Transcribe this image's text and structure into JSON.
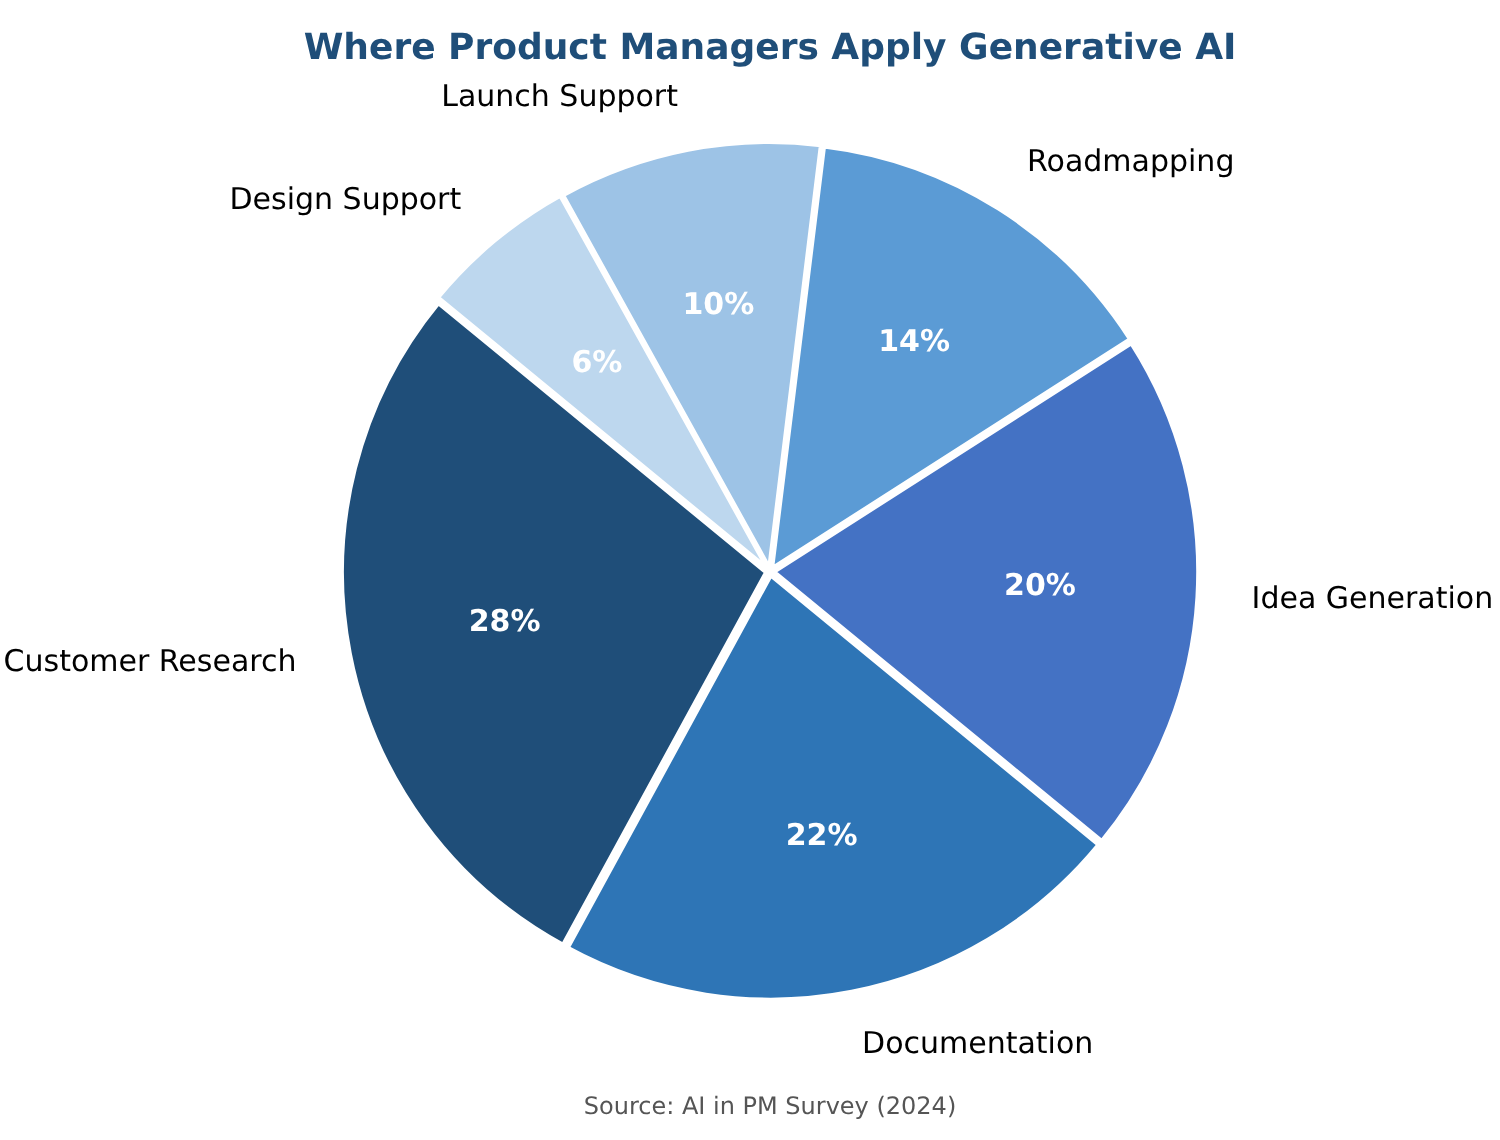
{
  "chart_data": {
    "type": "pie",
    "title": "Where Product Managers Apply Generative AI",
    "categories": [
      "Roadmapping",
      "Idea Generation",
      "Documentation",
      "Customer Research",
      "Design Support",
      "Launch Support"
    ],
    "values": [
      14,
      20,
      22,
      28,
      6,
      10
    ],
    "value_labels": [
      "14%",
      "20%",
      "22%",
      "28%",
      "6%",
      "10%"
    ],
    "colors": [
      "#5b9bd5",
      "#4472c4",
      "#2e75b6",
      "#1f4e79",
      "#bdd7ee",
      "#9dc3e6"
    ],
    "annotations": [
      "Source: AI in PM Survey (2024)"
    ],
    "legend": false
  }
}
